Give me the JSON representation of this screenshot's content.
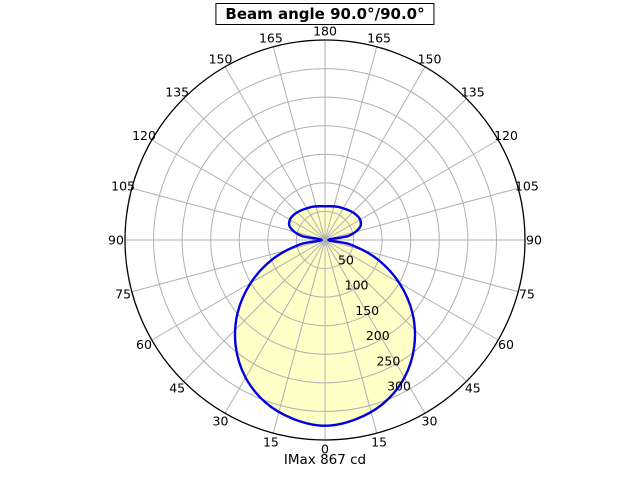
{
  "chart_data": {
    "type": "polar",
    "title": "Beam angle 90.0°/90.0°",
    "beam_angle": "90.0°/90.0°",
    "imax_label": "IMax 867 cd",
    "imax_cd": 867,
    "angle_tick_step_deg": 15,
    "angle_ticks": [
      0,
      15,
      30,
      45,
      60,
      75,
      90,
      105,
      120,
      135,
      150,
      165,
      180
    ],
    "radial_ticks": [
      50,
      100,
      150,
      200,
      250,
      300
    ],
    "r_max": 350,
    "grid_color": "#b0b0b0",
    "curve_fill": "#ffffc8",
    "curve_stroke": "#0000e0",
    "curve": {
      "angles_deg": [
        -180,
        -170,
        -160,
        -150,
        -140,
        -130,
        -120,
        -110,
        -100,
        -90,
        -80,
        -70,
        -60,
        -50,
        -40,
        -30,
        -20,
        -10,
        0,
        10,
        20,
        30,
        40,
        50,
        60,
        70,
        80,
        90,
        100,
        110,
        120,
        130,
        140,
        150,
        160,
        170,
        180
      ],
      "values": [
        59,
        60,
        62,
        64,
        67,
        70,
        71,
        65,
        42,
        6,
        45,
        97,
        150,
        200,
        243,
        278,
        303,
        318,
        325,
        318,
        303,
        278,
        243,
        200,
        150,
        97,
        45,
        6,
        42,
        65,
        71,
        70,
        67,
        64,
        62,
        60,
        59
      ]
    }
  }
}
